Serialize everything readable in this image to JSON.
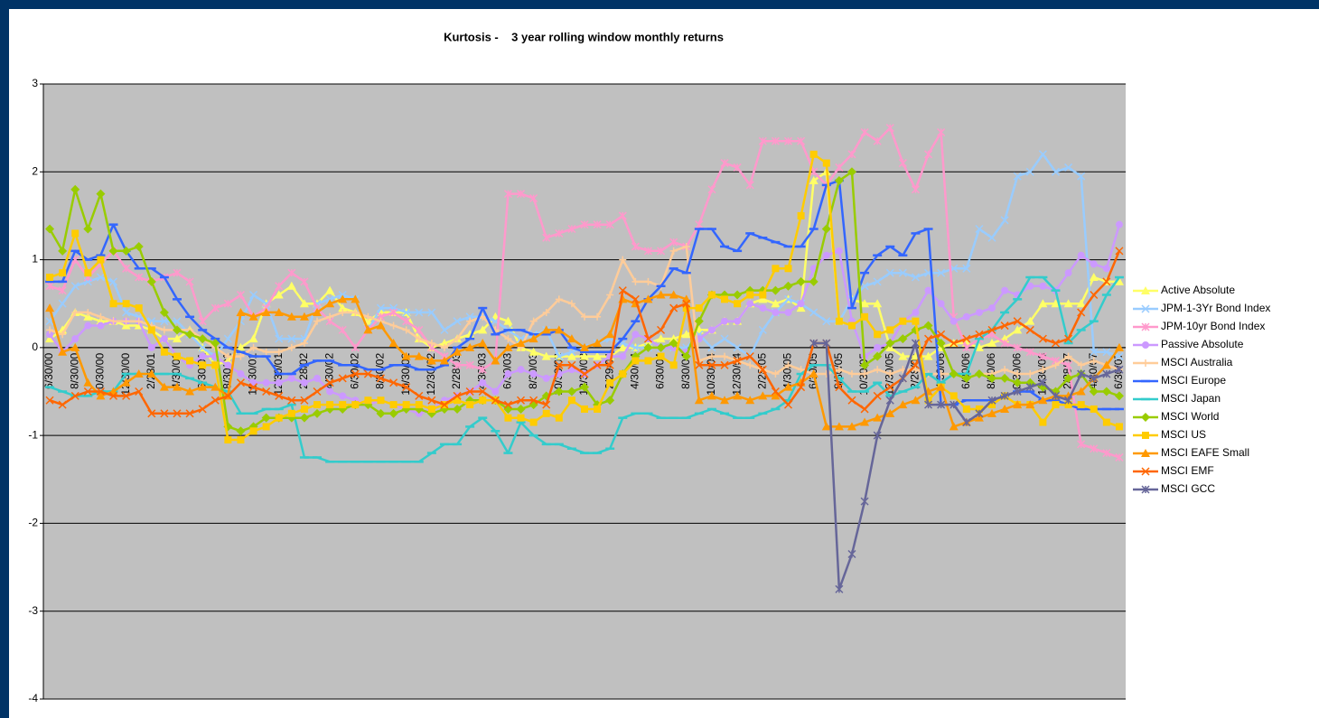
{
  "chart_data": {
    "type": "line",
    "title": "Kurtosis -    3 year rolling window monthly returns",
    "categories": [
      "6/30/00",
      null,
      "8/30/00",
      null,
      "10/30/00",
      null,
      "12/30/00",
      null,
      "2/28/01",
      null,
      "4/30/01",
      null,
      "6/30/01",
      null,
      "8/30/01",
      null,
      "10/30/01",
      null,
      "12/30/01",
      null,
      "2/28/02",
      null,
      "4/30/02",
      null,
      "6/30/02",
      null,
      "8/30/02",
      null,
      "10/30/02",
      null,
      "12/30/02",
      null,
      "2/28/03",
      null,
      "4/30/03",
      null,
      "6/30/03",
      null,
      "8/30/03",
      null,
      "10/30/03",
      null,
      "12/30/03",
      null,
      "2/29/04",
      null,
      "4/30/04",
      null,
      "6/30/04",
      null,
      "8/30/04",
      null,
      "10/30/04",
      null,
      "12/30/04",
      null,
      "2/28/05",
      null,
      "4/30/05",
      null,
      "6/30/05",
      null,
      "8/30/05",
      null,
      "10/30/05",
      null,
      "12/30/05",
      null,
      "2/28/06",
      null,
      "4/30/06",
      null,
      "6/30/06",
      null,
      "8/30/06",
      null,
      "10/30/06",
      null,
      "12/30/06",
      null,
      "2/28/07",
      null,
      "4/30/07",
      null,
      "6/30/07"
    ],
    "ylim": [
      -4,
      3
    ],
    "yticks": [
      -4,
      -3,
      -2,
      -1,
      0,
      1,
      2,
      3
    ],
    "grid": true,
    "series": [
      {
        "name": "Active Absolute",
        "color": "#ffff66",
        "marker": "triangle",
        "values": [
          0.1,
          0.2,
          0.4,
          0.35,
          0.3,
          0.3,
          0.25,
          0.25,
          0.2,
          0.1,
          0.1,
          0.2,
          0.0,
          -0.2,
          -0.15,
          0.0,
          0.1,
          0.5,
          0.6,
          0.7,
          0.5,
          0.5,
          0.65,
          0.45,
          0.4,
          0.3,
          0.4,
          0.4,
          0.4,
          0.1,
          0.0,
          0.05,
          0.1,
          0.15,
          0.2,
          0.35,
          0.3,
          0.0,
          -0.05,
          -0.1,
          -0.1,
          -0.1,
          -0.1,
          -0.1,
          -0.1,
          0.0,
          0.0,
          0.05,
          0.1,
          0.1,
          0.15,
          0.2,
          0.2,
          0.3,
          0.3,
          0.5,
          0.55,
          0.5,
          0.55,
          0.45,
          1.9,
          2.0,
          0.3,
          0.55,
          0.5,
          0.5,
          0.0,
          -0.1,
          -0.1,
          -0.1,
          0.0,
          0.05,
          0.05,
          0.0,
          0.05,
          0.1,
          0.2,
          0.3,
          0.5,
          0.5,
          0.5,
          0.5,
          0.8,
          0.75,
          0.75
        ]
      },
      {
        "name": "JPM-1-3Yr Bond Index",
        "color": "#99ccff",
        "marker": "x",
        "values": [
          0.3,
          0.5,
          0.7,
          0.75,
          0.8,
          0.75,
          0.4,
          0.35,
          0.3,
          0.3,
          0.3,
          0.15,
          0.0,
          -0.1,
          0.1,
          0.3,
          0.6,
          0.5,
          0.1,
          0.1,
          0.1,
          0.5,
          0.55,
          0.6,
          0.55,
          0.2,
          0.45,
          0.45,
          0.4,
          0.4,
          0.4,
          0.2,
          0.3,
          0.35,
          0.35,
          0.3,
          0.2,
          0.1,
          0.15,
          0.2,
          -0.1,
          -0.05,
          0.0,
          0.05,
          0.1,
          0.05,
          0.0,
          0.0,
          0.0,
          0.0,
          0.0,
          0.15,
          0.0,
          0.1,
          0.0,
          -0.1,
          0.2,
          0.4,
          0.55,
          0.5,
          0.4,
          0.3,
          0.3,
          0.55,
          0.7,
          0.75,
          0.85,
          0.85,
          0.8,
          0.85,
          0.85,
          0.9,
          0.9,
          1.35,
          1.25,
          1.45,
          1.95,
          2.0,
          2.2,
          2.0,
          2.05,
          1.95,
          -0.05,
          -0.05,
          -0.1
        ]
      },
      {
        "name": "JPM-10yr Bond Index",
        "color": "#ff99cc",
        "marker": "star",
        "values": [
          0.7,
          0.65,
          1.0,
          0.8,
          0.95,
          1.1,
          0.9,
          0.8,
          0.75,
          0.8,
          0.85,
          0.75,
          0.3,
          0.45,
          0.5,
          0.6,
          0.35,
          0.45,
          0.7,
          0.85,
          0.75,
          0.45,
          0.3,
          0.2,
          0.0,
          0.2,
          0.35,
          0.4,
          0.3,
          0.2,
          0.0,
          -0.1,
          -0.2,
          -0.2,
          -0.25,
          -0.15,
          1.75,
          1.75,
          1.7,
          1.25,
          1.3,
          1.35,
          1.4,
          1.4,
          1.4,
          1.5,
          1.15,
          1.1,
          1.1,
          1.2,
          1.15,
          1.4,
          1.8,
          2.1,
          2.05,
          1.85,
          2.35,
          2.35,
          2.35,
          2.35,
          2.0,
          1.85,
          2.05,
          2.2,
          2.45,
          2.35,
          2.5,
          2.1,
          1.8,
          2.2,
          2.45,
          0.35,
          0.0,
          0.1,
          0.15,
          0.05,
          0.0,
          -0.05,
          -0.1,
          -0.15,
          -0.2,
          -1.1,
          -1.15,
          -1.2,
          -1.25
        ]
      },
      {
        "name": "Passive Absolute",
        "color": "#cc99ff",
        "marker": "circle",
        "values": [
          0.15,
          -0.05,
          0.1,
          0.25,
          0.25,
          0.3,
          0.3,
          0.3,
          0.0,
          0.1,
          -0.1,
          -0.2,
          -0.1,
          -0.1,
          -0.2,
          -0.3,
          -0.4,
          -0.4,
          -0.4,
          -0.35,
          -0.4,
          -0.35,
          -0.5,
          -0.55,
          -0.6,
          -0.65,
          -0.6,
          -0.65,
          -0.7,
          -0.75,
          -0.7,
          -0.6,
          -0.55,
          -0.5,
          -0.4,
          -0.5,
          -0.3,
          -0.25,
          -0.3,
          -0.35,
          -0.3,
          -0.25,
          -0.3,
          -0.2,
          -0.1,
          -0.1,
          0.15,
          0.1,
          0.0,
          0.0,
          -0.05,
          0.1,
          0.2,
          0.3,
          0.3,
          0.5,
          0.45,
          0.4,
          0.4,
          0.5,
          0.9,
          1.05,
          1.1,
          0.3,
          -0.1,
          0.0,
          0.05,
          0.3,
          0.4,
          0.65,
          0.5,
          0.3,
          0.35,
          0.4,
          0.45,
          0.65,
          0.6,
          0.7,
          0.7,
          0.65,
          0.85,
          1.05,
          0.95,
          0.9,
          1.4
        ]
      },
      {
        "name": "MSCI Australia",
        "color": "#ffcc99",
        "marker": "plus",
        "values": [
          0.2,
          0.15,
          0.4,
          0.4,
          0.35,
          0.3,
          0.3,
          0.3,
          0.25,
          0.2,
          0.2,
          0.2,
          0.1,
          0.0,
          -0.1,
          -0.1,
          0.0,
          -0.05,
          -0.05,
          0.0,
          0.05,
          0.3,
          0.35,
          0.4,
          0.4,
          0.35,
          0.3,
          0.25,
          0.2,
          0.1,
          0.05,
          0.0,
          0.1,
          0.3,
          0.35,
          0.2,
          0.1,
          0.0,
          0.3,
          0.4,
          0.55,
          0.5,
          0.35,
          0.35,
          0.6,
          1.0,
          0.75,
          0.75,
          0.7,
          1.1,
          1.15,
          -0.15,
          -0.1,
          -0.1,
          -0.15,
          -0.2,
          -0.25,
          -0.3,
          -0.2,
          -0.25,
          -0.3,
          -0.3,
          -0.25,
          -0.3,
          -0.3,
          -0.25,
          -0.3,
          -0.25,
          -0.25,
          -0.3,
          -0.3,
          -0.3,
          -0.35,
          -0.3,
          -0.3,
          -0.25,
          -0.3,
          -0.3,
          -0.25,
          -0.2,
          -0.1,
          -0.2,
          -0.15,
          -0.2,
          -0.25
        ]
      },
      {
        "name": "MSCI Europe",
        "color": "#3366ff",
        "marker": "dash",
        "values": [
          0.75,
          0.75,
          1.1,
          1.0,
          1.05,
          1.4,
          1.1,
          0.9,
          0.9,
          0.8,
          0.55,
          0.35,
          0.2,
          0.1,
          0.0,
          -0.05,
          -0.1,
          -0.1,
          -0.3,
          -0.3,
          -0.2,
          -0.15,
          -0.15,
          -0.2,
          -0.2,
          -0.25,
          -0.25,
          -0.2,
          -0.2,
          -0.25,
          -0.25,
          -0.2,
          0.0,
          0.1,
          0.45,
          0.15,
          0.2,
          0.2,
          0.15,
          0.15,
          0.2,
          0.0,
          -0.05,
          -0.05,
          -0.05,
          0.1,
          0.3,
          0.55,
          0.7,
          0.9,
          0.85,
          1.35,
          1.35,
          1.15,
          1.1,
          1.3,
          1.25,
          1.2,
          1.15,
          1.15,
          1.35,
          1.85,
          1.9,
          0.45,
          0.85,
          1.05,
          1.15,
          1.05,
          1.3,
          1.35,
          -0.65,
          -0.65,
          -0.6,
          -0.6,
          -0.6,
          -0.55,
          -0.5,
          -0.5,
          -0.6,
          -0.6,
          -0.65,
          -0.7,
          -0.7,
          -0.7,
          -0.7
        ]
      },
      {
        "name": "MSCI Japan",
        "color": "#33cccc",
        "marker": "dash",
        "values": [
          -0.45,
          -0.5,
          -0.55,
          -0.55,
          -0.5,
          -0.5,
          -0.3,
          -0.3,
          -0.3,
          -0.3,
          -0.3,
          -0.35,
          -0.4,
          -0.45,
          -0.5,
          -0.75,
          -0.75,
          -0.7,
          -0.7,
          -0.65,
          -1.25,
          -1.25,
          -1.3,
          -1.3,
          -1.3,
          -1.3,
          -1.3,
          -1.3,
          -1.3,
          -1.3,
          -1.2,
          -1.1,
          -1.1,
          -0.9,
          -0.8,
          -0.95,
          -1.2,
          -0.85,
          -1.0,
          -1.1,
          -1.1,
          -1.15,
          -1.2,
          -1.2,
          -1.15,
          -0.8,
          -0.75,
          -0.75,
          -0.8,
          -0.8,
          -0.8,
          -0.75,
          -0.7,
          -0.75,
          -0.8,
          -0.8,
          -0.75,
          -0.7,
          -0.6,
          -0.3,
          -0.2,
          -0.2,
          -0.35,
          -0.5,
          -0.5,
          -0.4,
          -0.55,
          -0.5,
          -0.45,
          -0.3,
          -0.4,
          -0.3,
          -0.3,
          0.1,
          0.2,
          0.4,
          0.55,
          0.8,
          0.8,
          0.65,
          0.05,
          0.2,
          0.3,
          0.6,
          0.8
        ]
      },
      {
        "name": "MSCI World",
        "color": "#99cc00",
        "marker": "diamond",
        "values": [
          1.35,
          1.1,
          1.8,
          1.35,
          1.75,
          1.1,
          1.1,
          1.15,
          0.75,
          0.4,
          0.2,
          0.15,
          0.1,
          0.05,
          -0.9,
          -0.95,
          -0.9,
          -0.8,
          -0.8,
          -0.8,
          -0.8,
          -0.75,
          -0.7,
          -0.7,
          -0.65,
          -0.65,
          -0.75,
          -0.75,
          -0.7,
          -0.7,
          -0.75,
          -0.7,
          -0.7,
          -0.6,
          -0.6,
          -0.6,
          -0.7,
          -0.7,
          -0.65,
          -0.55,
          -0.5,
          -0.5,
          -0.45,
          -0.65,
          -0.6,
          -0.3,
          -0.1,
          0.0,
          0.0,
          0.05,
          -0.1,
          0.3,
          0.6,
          0.6,
          0.6,
          0.65,
          0.65,
          0.65,
          0.7,
          0.75,
          0.75,
          1.35,
          1.9,
          2.0,
          -0.2,
          -0.1,
          0.05,
          0.1,
          0.2,
          0.25,
          0.05,
          -0.3,
          -0.35,
          -0.3,
          -0.35,
          -0.35,
          -0.4,
          -0.4,
          -0.45,
          -0.5,
          -0.35,
          -0.3,
          -0.5,
          -0.5,
          -0.55
        ]
      },
      {
        "name": "MSCI US",
        "color": "#ffcc00",
        "marker": "square",
        "values": [
          0.8,
          0.85,
          1.3,
          0.85,
          1.0,
          0.5,
          0.5,
          0.45,
          0.2,
          -0.05,
          -0.1,
          -0.15,
          -0.2,
          -0.2,
          -1.05,
          -1.05,
          -0.95,
          -0.9,
          -0.8,
          -0.75,
          -0.7,
          -0.65,
          -0.65,
          -0.65,
          -0.65,
          -0.6,
          -0.6,
          -0.65,
          -0.65,
          -0.65,
          -0.7,
          -0.65,
          -0.6,
          -0.65,
          -0.6,
          -0.6,
          -0.8,
          -0.8,
          -0.85,
          -0.75,
          -0.8,
          -0.6,
          -0.7,
          -0.7,
          -0.4,
          -0.3,
          -0.15,
          -0.15,
          -0.1,
          -0.2,
          0.45,
          0.45,
          0.6,
          0.55,
          0.5,
          0.6,
          0.6,
          0.9,
          0.9,
          1.5,
          2.2,
          2.1,
          0.3,
          0.25,
          0.35,
          0.15,
          0.2,
          0.3,
          0.3,
          -0.6,
          -0.45,
          -0.55,
          -0.7,
          -0.7,
          -0.65,
          -0.55,
          -0.65,
          -0.65,
          -0.85,
          -0.65,
          -0.65,
          -0.65,
          -0.7,
          -0.85,
          -0.9
        ]
      },
      {
        "name": "MSCI EAFE Small",
        "color": "#ff9900",
        "marker": "triangle",
        "values": [
          0.45,
          -0.05,
          0.0,
          -0.4,
          -0.55,
          -0.5,
          -0.4,
          -0.3,
          -0.3,
          -0.45,
          -0.45,
          -0.5,
          -0.45,
          -0.45,
          -0.55,
          0.4,
          0.35,
          0.4,
          0.4,
          0.35,
          0.35,
          0.4,
          0.5,
          0.55,
          0.55,
          0.2,
          0.25,
          0.05,
          -0.1,
          -0.1,
          -0.15,
          -0.15,
          -0.05,
          0.0,
          0.05,
          -0.15,
          0.0,
          0.05,
          0.1,
          0.2,
          0.2,
          0.1,
          0.0,
          0.05,
          0.15,
          0.55,
          0.5,
          0.55,
          0.6,
          0.6,
          0.55,
          -0.6,
          -0.55,
          -0.6,
          -0.55,
          -0.6,
          -0.55,
          -0.55,
          -0.45,
          -0.4,
          -0.3,
          -0.9,
          -0.9,
          -0.9,
          -0.85,
          -0.8,
          -0.75,
          -0.65,
          -0.6,
          -0.5,
          -0.45,
          -0.9,
          -0.85,
          -0.8,
          -0.75,
          -0.7,
          -0.65,
          -0.65,
          -0.6,
          -0.55,
          -0.55,
          -0.5,
          -0.35,
          -0.2,
          0.0
        ]
      },
      {
        "name": "MSCI EMF",
        "color": "#ff6600",
        "marker": "x",
        "values": [
          -0.6,
          -0.65,
          -0.55,
          -0.5,
          -0.5,
          -0.55,
          -0.55,
          -0.5,
          -0.75,
          -0.75,
          -0.75,
          -0.75,
          -0.7,
          -0.6,
          -0.55,
          -0.4,
          -0.45,
          -0.5,
          -0.55,
          -0.6,
          -0.6,
          -0.5,
          -0.4,
          -0.35,
          -0.3,
          -0.3,
          -0.35,
          -0.4,
          -0.45,
          -0.55,
          -0.6,
          -0.65,
          -0.55,
          -0.5,
          -0.5,
          -0.6,
          -0.65,
          -0.6,
          -0.6,
          -0.65,
          -0.2,
          -0.2,
          -0.3,
          -0.2,
          -0.2,
          0.65,
          0.55,
          0.1,
          0.2,
          0.45,
          0.5,
          -0.2,
          -0.2,
          -0.2,
          -0.15,
          -0.1,
          -0.25,
          -0.5,
          -0.65,
          -0.45,
          0.05,
          0.05,
          -0.45,
          -0.6,
          -0.7,
          -0.55,
          -0.45,
          -0.35,
          -0.2,
          0.1,
          0.15,
          0.05,
          0.1,
          0.15,
          0.2,
          0.25,
          0.3,
          0.2,
          0.1,
          0.05,
          0.1,
          0.4,
          0.6,
          0.75,
          1.1
        ]
      },
      {
        "name": "MSCI GCC",
        "color": "#666699",
        "marker": "star",
        "values": [
          null,
          null,
          null,
          null,
          null,
          null,
          null,
          null,
          null,
          null,
          null,
          null,
          null,
          null,
          null,
          null,
          null,
          null,
          null,
          null,
          null,
          null,
          null,
          null,
          null,
          null,
          null,
          null,
          null,
          null,
          null,
          null,
          null,
          null,
          null,
          null,
          null,
          null,
          null,
          null,
          null,
          null,
          null,
          null,
          null,
          null,
          null,
          null,
          null,
          null,
          null,
          null,
          null,
          null,
          null,
          null,
          null,
          null,
          null,
          null,
          0.05,
          0.05,
          -2.75,
          -2.35,
          -1.75,
          -1.0,
          -0.6,
          -0.35,
          0.05,
          -0.65,
          -0.65,
          -0.65,
          -0.85,
          -0.75,
          -0.6,
          -0.55,
          -0.5,
          -0.45,
          -0.4,
          -0.55,
          -0.6,
          -0.3,
          -0.35,
          -0.3,
          -0.25
        ]
      }
    ]
  }
}
